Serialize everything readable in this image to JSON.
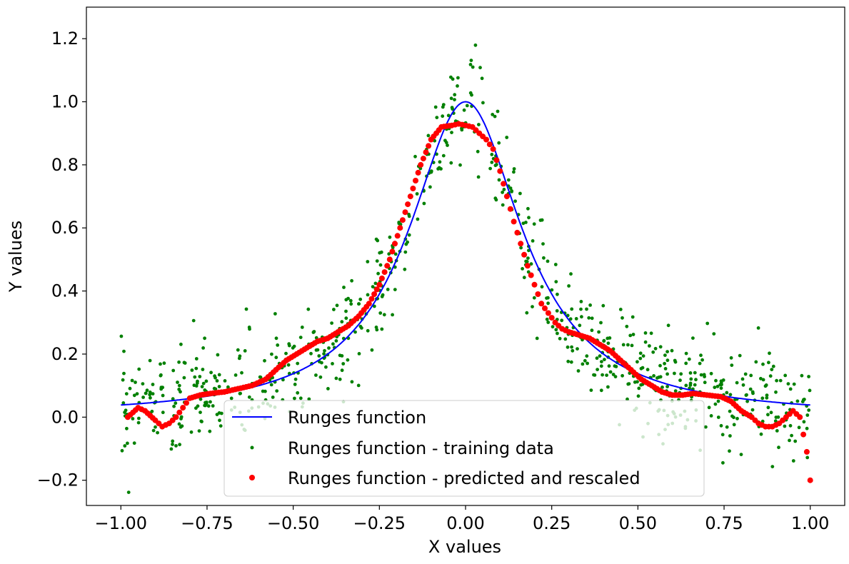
{
  "chart_data": {
    "type": "scatter",
    "xlabel": "X values",
    "ylabel": "Y values",
    "xlim": [
      -1.1,
      1.1
    ],
    "ylim": [
      -0.28,
      1.3
    ],
    "xticks": [
      -1.0,
      -0.75,
      -0.5,
      -0.25,
      0.0,
      0.25,
      0.5,
      0.75,
      1.0
    ],
    "xtick_labels": [
      "−1.00",
      "−0.75",
      "−0.50",
      "−0.25",
      "0.00",
      "0.25",
      "0.50",
      "0.75",
      "1.00"
    ],
    "yticks": [
      -0.2,
      0.0,
      0.2,
      0.4,
      0.6,
      0.8,
      1.0,
      1.2
    ],
    "ytick_labels": [
      "−0.2",
      "0.0",
      "0.2",
      "0.4",
      "0.6",
      "0.8",
      "1.0",
      "1.2"
    ],
    "grid": false,
    "legend_placement": "lower center",
    "series": [
      {
        "name": "Runges function",
        "kind": "line",
        "color": "#0000ff",
        "function": "1 / (1 + 25 x^2)",
        "x_range": [
          -1.0,
          1.0
        ]
      },
      {
        "name": "Runges function - training data",
        "kind": "scatter",
        "color": "#008000",
        "function": "1 / (1 + 25 x^2) + noise",
        "noise_std": 0.08,
        "n_points": 800,
        "x_range": [
          -1.0,
          1.0
        ]
      },
      {
        "name": "Runges function - predicted and rescaled",
        "kind": "scatter",
        "color": "#ff0000",
        "x": [
          -0.98,
          -0.95,
          -0.93,
          -0.9,
          -0.88,
          -0.86,
          -0.84,
          -0.82,
          -0.8,
          -0.77,
          -0.74,
          -0.7,
          -0.66,
          -0.62,
          -0.58,
          -0.55,
          -0.52,
          -0.49,
          -0.46,
          -0.43,
          -0.4,
          -0.37,
          -0.34,
          -0.31,
          -0.28,
          -0.25,
          -0.22,
          -0.19,
          -0.16,
          -0.13,
          -0.1,
          -0.07,
          -0.04,
          -0.02,
          0.0,
          0.02,
          0.04,
          0.06,
          0.08,
          0.1,
          0.12,
          0.14,
          0.16,
          0.18,
          0.2,
          0.22,
          0.24,
          0.26,
          0.28,
          0.3,
          0.33,
          0.36,
          0.39,
          0.42,
          0.45,
          0.48,
          0.51,
          0.54,
          0.57,
          0.6,
          0.63,
          0.66,
          0.7,
          0.74,
          0.77,
          0.8,
          0.83,
          0.85,
          0.87,
          0.89,
          0.91,
          0.93,
          0.95,
          0.97,
          0.99,
          1.0
        ],
        "y": [
          0.0,
          0.03,
          0.02,
          -0.01,
          -0.03,
          -0.02,
          0.0,
          0.03,
          0.06,
          0.07,
          0.075,
          0.08,
          0.09,
          0.1,
          0.12,
          0.15,
          0.18,
          0.2,
          0.22,
          0.24,
          0.25,
          0.27,
          0.29,
          0.32,
          0.36,
          0.42,
          0.5,
          0.6,
          0.7,
          0.8,
          0.88,
          0.92,
          0.925,
          0.93,
          0.925,
          0.92,
          0.9,
          0.88,
          0.85,
          0.78,
          0.7,
          0.62,
          0.55,
          0.48,
          0.42,
          0.36,
          0.33,
          0.3,
          0.28,
          0.27,
          0.26,
          0.25,
          0.23,
          0.21,
          0.18,
          0.15,
          0.12,
          0.1,
          0.08,
          0.07,
          0.07,
          0.075,
          0.07,
          0.065,
          0.05,
          0.02,
          0.0,
          -0.02,
          -0.03,
          -0.03,
          -0.02,
          0.0,
          0.02,
          0.0,
          -0.11,
          -0.2
        ]
      }
    ]
  }
}
